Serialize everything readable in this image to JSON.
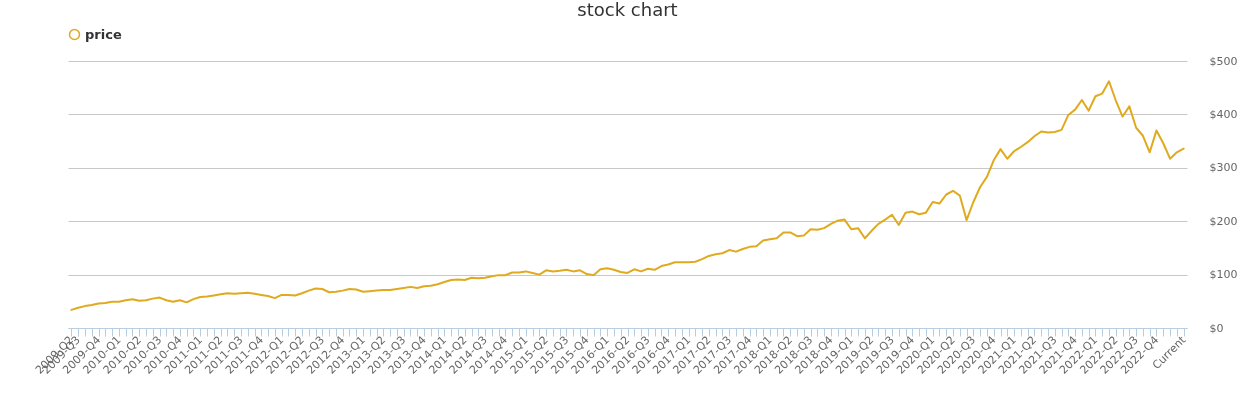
{
  "chart_data": {
    "type": "line",
    "title": "stock chart",
    "categories": [
      "2009-Q2",
      "2009-Q3",
      null,
      null,
      "2009-Q4",
      null,
      null,
      "2010-Q1",
      null,
      null,
      "2010-Q2",
      null,
      null,
      "2010-Q3",
      null,
      null,
      "2010-Q4",
      null,
      null,
      "2011-Q1",
      null,
      null,
      "2011-Q2",
      null,
      null,
      "2011-Q3",
      null,
      null,
      "2011-Q4",
      null,
      null,
      "2012-Q1",
      null,
      null,
      "2012-Q2",
      null,
      null,
      "2012-Q3",
      null,
      null,
      "2012-Q4",
      null,
      null,
      "2013-Q1",
      null,
      null,
      "2013-Q2",
      null,
      null,
      "2013-Q3",
      null,
      null,
      "2013-Q4",
      null,
      null,
      "2014-Q1",
      null,
      null,
      "2014-Q2",
      null,
      null,
      "2014-Q3",
      null,
      null,
      "2014-Q4",
      null,
      null,
      "2015-Q1",
      null,
      null,
      "2015-Q2",
      null,
      null,
      "2015-Q3",
      null,
      null,
      "2015-Q4",
      null,
      null,
      "2016-Q1",
      null,
      null,
      "2016-Q2",
      null,
      null,
      "2016-Q3",
      null,
      null,
      "2016-Q4",
      null,
      null,
      "2017-Q1",
      null,
      null,
      "2017-Q2",
      null,
      null,
      "2017-Q3",
      null,
      null,
      "2017-Q4",
      null,
      null,
      "2018-Q1",
      null,
      null,
      "2018-Q2",
      null,
      null,
      "2018-Q3",
      null,
      null,
      "2018-Q4",
      null,
      null,
      "2019-Q1",
      null,
      null,
      "2019-Q2",
      null,
      null,
      "2019-Q3",
      null,
      null,
      "2019-Q4",
      null,
      null,
      "2020-Q1",
      null,
      null,
      "2020-Q2",
      null,
      null,
      "2020-Q3",
      null,
      null,
      "2020-Q4",
      null,
      null,
      "2021-Q1",
      null,
      null,
      "2021-Q2",
      null,
      null,
      "2021-Q3",
      null,
      null,
      "2021-Q4",
      null,
      null,
      "2022-Q1",
      null,
      null,
      "2022-Q2",
      null,
      null,
      "2022-Q3",
      null,
      null,
      "2022-Q4",
      null,
      null,
      null,
      "Current"
    ],
    "series": [
      {
        "name": "price",
        "color": "#e0aa1e",
        "values": [
          34,
          38,
          41,
          43,
          46,
          47,
          49,
          49,
          52,
          54,
          51,
          52,
          55,
          57,
          52,
          49,
          52,
          48,
          54,
          58,
          59,
          61,
          63,
          65,
          64,
          65,
          66,
          64,
          62,
          60,
          56,
          62,
          62,
          61,
          65,
          70,
          74,
          73,
          67,
          68,
          70,
          73,
          72,
          68,
          69,
          70,
          71,
          71,
          73,
          75,
          77,
          75,
          78,
          79,
          82,
          86,
          90,
          91,
          90,
          94,
          93,
          94,
          97,
          99,
          99,
          104,
          104,
          106,
          103,
          100,
          108,
          106,
          107,
          109,
          106,
          108,
          101,
          99,
          110,
          112,
          109,
          105,
          103,
          110,
          106,
          111,
          109,
          116,
          119,
          123,
          123,
          123,
          124,
          129,
          135,
          138,
          140,
          146,
          143,
          148,
          152,
          153,
          164,
          166,
          168,
          179,
          179,
          172,
          173,
          185,
          184,
          187,
          195,
          201,
          203,
          185,
          187,
          168,
          182,
          195,
          203,
          212,
          193,
          216,
          218,
          213,
          216,
          236,
          233,
          250,
          257,
          248,
          202,
          236,
          264,
          283,
          314,
          335,
          317,
          331,
          339,
          348,
          359,
          368,
          366,
          367,
          371,
          399,
          409,
          427,
          407,
          434,
          439,
          462,
          426,
          396,
          415,
          375,
          360,
          329,
          370,
          346,
          317,
          329,
          336
        ]
      }
    ],
    "ylim": [
      0,
      500
    ],
    "yticks": [
      {
        "value": 0,
        "label": "$0"
      },
      {
        "value": 100,
        "label": "$100"
      },
      {
        "value": 200,
        "label": "$200"
      },
      {
        "value": 300,
        "label": "$300"
      },
      {
        "value": 400,
        "label": "$400"
      },
      {
        "value": 500,
        "label": "$500"
      }
    ],
    "grid": "y",
    "legend": "top",
    "line_style": "solid"
  }
}
